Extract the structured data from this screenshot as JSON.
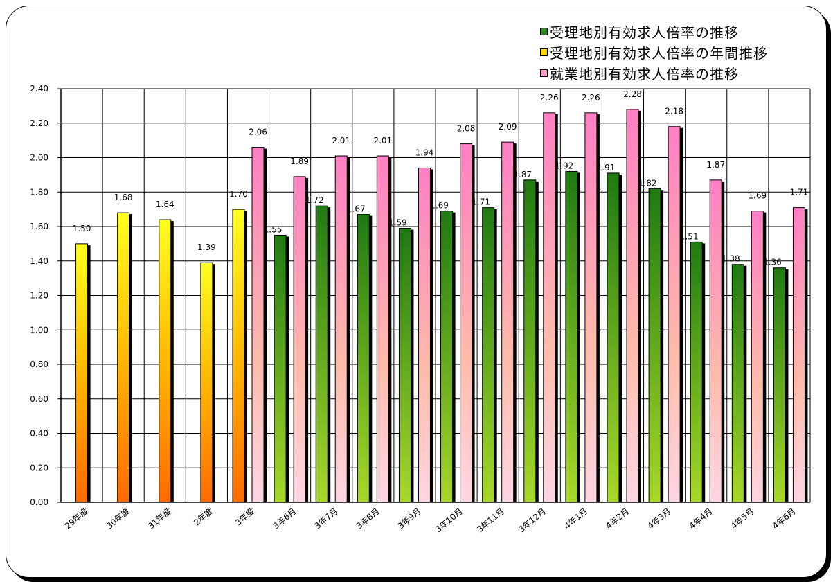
{
  "chart_data": {
    "type": "bar",
    "categories": [
      "29年度",
      "30年度",
      "31年度",
      "2年度",
      "3年度",
      "3年6月",
      "3年7月",
      "3年8月",
      "3年9月",
      "3年10月",
      "3年11月",
      "3年12月",
      "4年1月",
      "4年2月",
      "4年3月",
      "4年4月",
      "4年5月",
      "4年6月"
    ],
    "ylim": [
      0,
      2.4
    ],
    "yticks": [
      "0.00",
      "0.20",
      "0.40",
      "0.60",
      "0.80",
      "1.00",
      "1.20",
      "1.40",
      "1.60",
      "1.80",
      "2.00",
      "2.20",
      "2.40"
    ],
    "grid": true,
    "legend_position": "top-right",
    "series": [
      {
        "name": "受理地別有効求人倍率の推移",
        "color": "#2e8b1e",
        "values": [
          null,
          null,
          null,
          null,
          null,
          1.55,
          1.72,
          1.67,
          1.59,
          1.69,
          1.71,
          1.87,
          1.92,
          1.91,
          1.82,
          1.51,
          1.38,
          1.36
        ],
        "labels": [
          "",
          "",
          "",
          "",
          "",
          "1.55",
          "1.72",
          "1.67",
          "1.59",
          "1.69",
          "1.71",
          "1.87",
          "1.92",
          "1.91",
          "1.82",
          "1.51",
          "1.38",
          "1.36"
        ]
      },
      {
        "name": "受理地別有効求人倍率の年間推移",
        "color": "#ffd700",
        "values": [
          1.5,
          1.68,
          1.64,
          1.39,
          1.7,
          null,
          null,
          null,
          null,
          null,
          null,
          null,
          null,
          null,
          null,
          null,
          null,
          null
        ],
        "labels": [
          "1.50",
          "1.68",
          "1.64",
          "1.39",
          "1.70",
          "",
          "",
          "",
          "",
          "",
          "",
          "",
          "",
          "",
          "",
          "",
          "",
          ""
        ]
      },
      {
        "name": "就業地別有効求人倍率の推移",
        "color": "#ff99cc",
        "values": [
          null,
          null,
          null,
          null,
          2.06,
          1.89,
          2.01,
          2.01,
          1.94,
          2.08,
          2.09,
          2.26,
          2.26,
          2.28,
          2.18,
          1.87,
          1.69,
          1.71
        ],
        "labels": [
          "",
          "",
          "",
          "",
          "2.06",
          "1.89",
          "2.01",
          "2.01",
          "1.94",
          "2.08",
          "2.09",
          "2.26",
          "2.26",
          "2.28",
          "2.18",
          "1.87",
          "1.69",
          "1.71"
        ]
      }
    ]
  }
}
